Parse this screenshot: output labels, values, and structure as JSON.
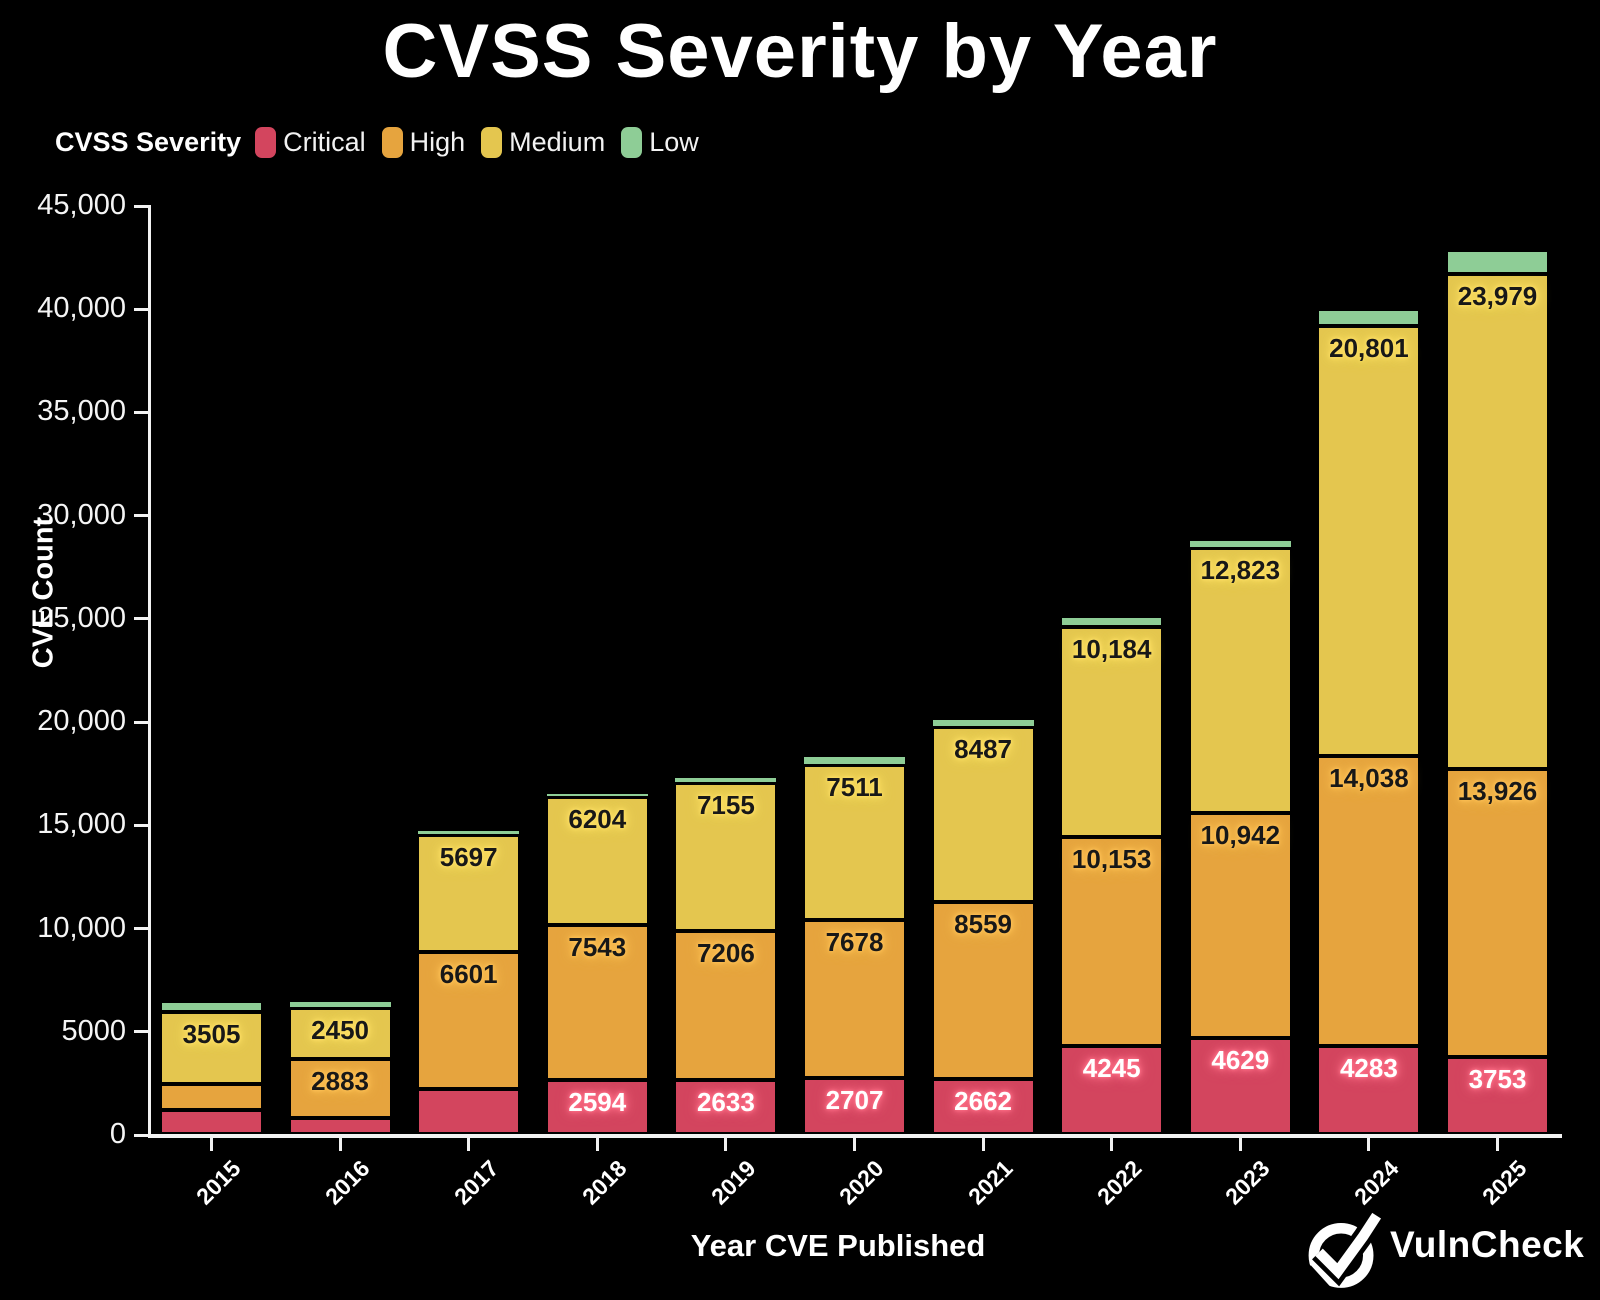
{
  "title": "CVSS Severity by Year",
  "legend": {
    "title": "CVSS Severity"
  },
  "branding": {
    "logo_text": "VulnCheck",
    "logo_icon": "check-circle-icon"
  },
  "chart_data": {
    "type": "bar",
    "stacked": true,
    "title": "CVSS Severity by Year",
    "xlabel": "Year CVE Published",
    "ylabel": "CVE Count",
    "ylim": [
      0,
      45000
    ],
    "grid": false,
    "background": "#000000",
    "legend_position": "top-left",
    "categories": [
      "2015",
      "2016",
      "2017",
      "2018",
      "2019",
      "2020",
      "2021",
      "2022",
      "2023",
      "2024",
      "2025"
    ],
    "yticks": [
      {
        "v": 0,
        "label": "0"
      },
      {
        "v": 5000,
        "label": "5000"
      },
      {
        "v": 10000,
        "label": "10,000"
      },
      {
        "v": 15000,
        "label": "15,000"
      },
      {
        "v": 20000,
        "label": "20,000"
      },
      {
        "v": 25000,
        "label": "25,000"
      },
      {
        "v": 30000,
        "label": "30,000"
      },
      {
        "v": 35000,
        "label": "35,000"
      },
      {
        "v": 40000,
        "label": "40,000"
      },
      {
        "v": 45000,
        "label": "45,000"
      }
    ],
    "series": [
      {
        "name": "Critical",
        "color": "#d3455e",
        "glow": "#ff7088",
        "label_text_color": "#ffffff",
        "values": [
          1150,
          760,
          2200,
          2594,
          2633,
          2707,
          2662,
          4245,
          4629,
          4283,
          3753
        ],
        "labels": [
          "",
          "",
          "",
          "2594",
          "2633",
          "2707",
          "2662",
          "4245",
          "4629",
          "4283",
          "3753"
        ]
      },
      {
        "name": "High",
        "color": "#e6a43e",
        "glow": "#ffc257",
        "label_text_color": "#181818",
        "values": [
          1250,
          2883,
          6601,
          7543,
          7206,
          7678,
          8559,
          10153,
          10942,
          14038,
          13926
        ],
        "labels": [
          "",
          "2883",
          "6601",
          "7543",
          "7206",
          "7678",
          "8559",
          "10,153",
          "10,942",
          "14,038",
          "13,926"
        ]
      },
      {
        "name": "Medium",
        "color": "#e4c64f",
        "glow": "#ffe066",
        "label_text_color": "#181818",
        "values": [
          3505,
          2450,
          5697,
          6204,
          7155,
          7511,
          8487,
          10184,
          12823,
          20801,
          23979
        ],
        "labels": [
          "3505",
          "2450",
          "5697",
          "6204",
          "7155",
          "7511",
          "8487",
          "10,184",
          "12,823",
          "20,801",
          "23,979"
        ]
      },
      {
        "name": "Low",
        "color": "#8ecd96",
        "glow": "#b5e8bc",
        "label_text_color": "#181818",
        "values": [
          540,
          330,
          250,
          200,
          300,
          400,
          400,
          500,
          400,
          850,
          1150
        ],
        "labels": [
          "",
          "",
          "",
          "",
          "",
          "",
          "",
          "",
          "",
          "",
          ""
        ]
      }
    ]
  }
}
